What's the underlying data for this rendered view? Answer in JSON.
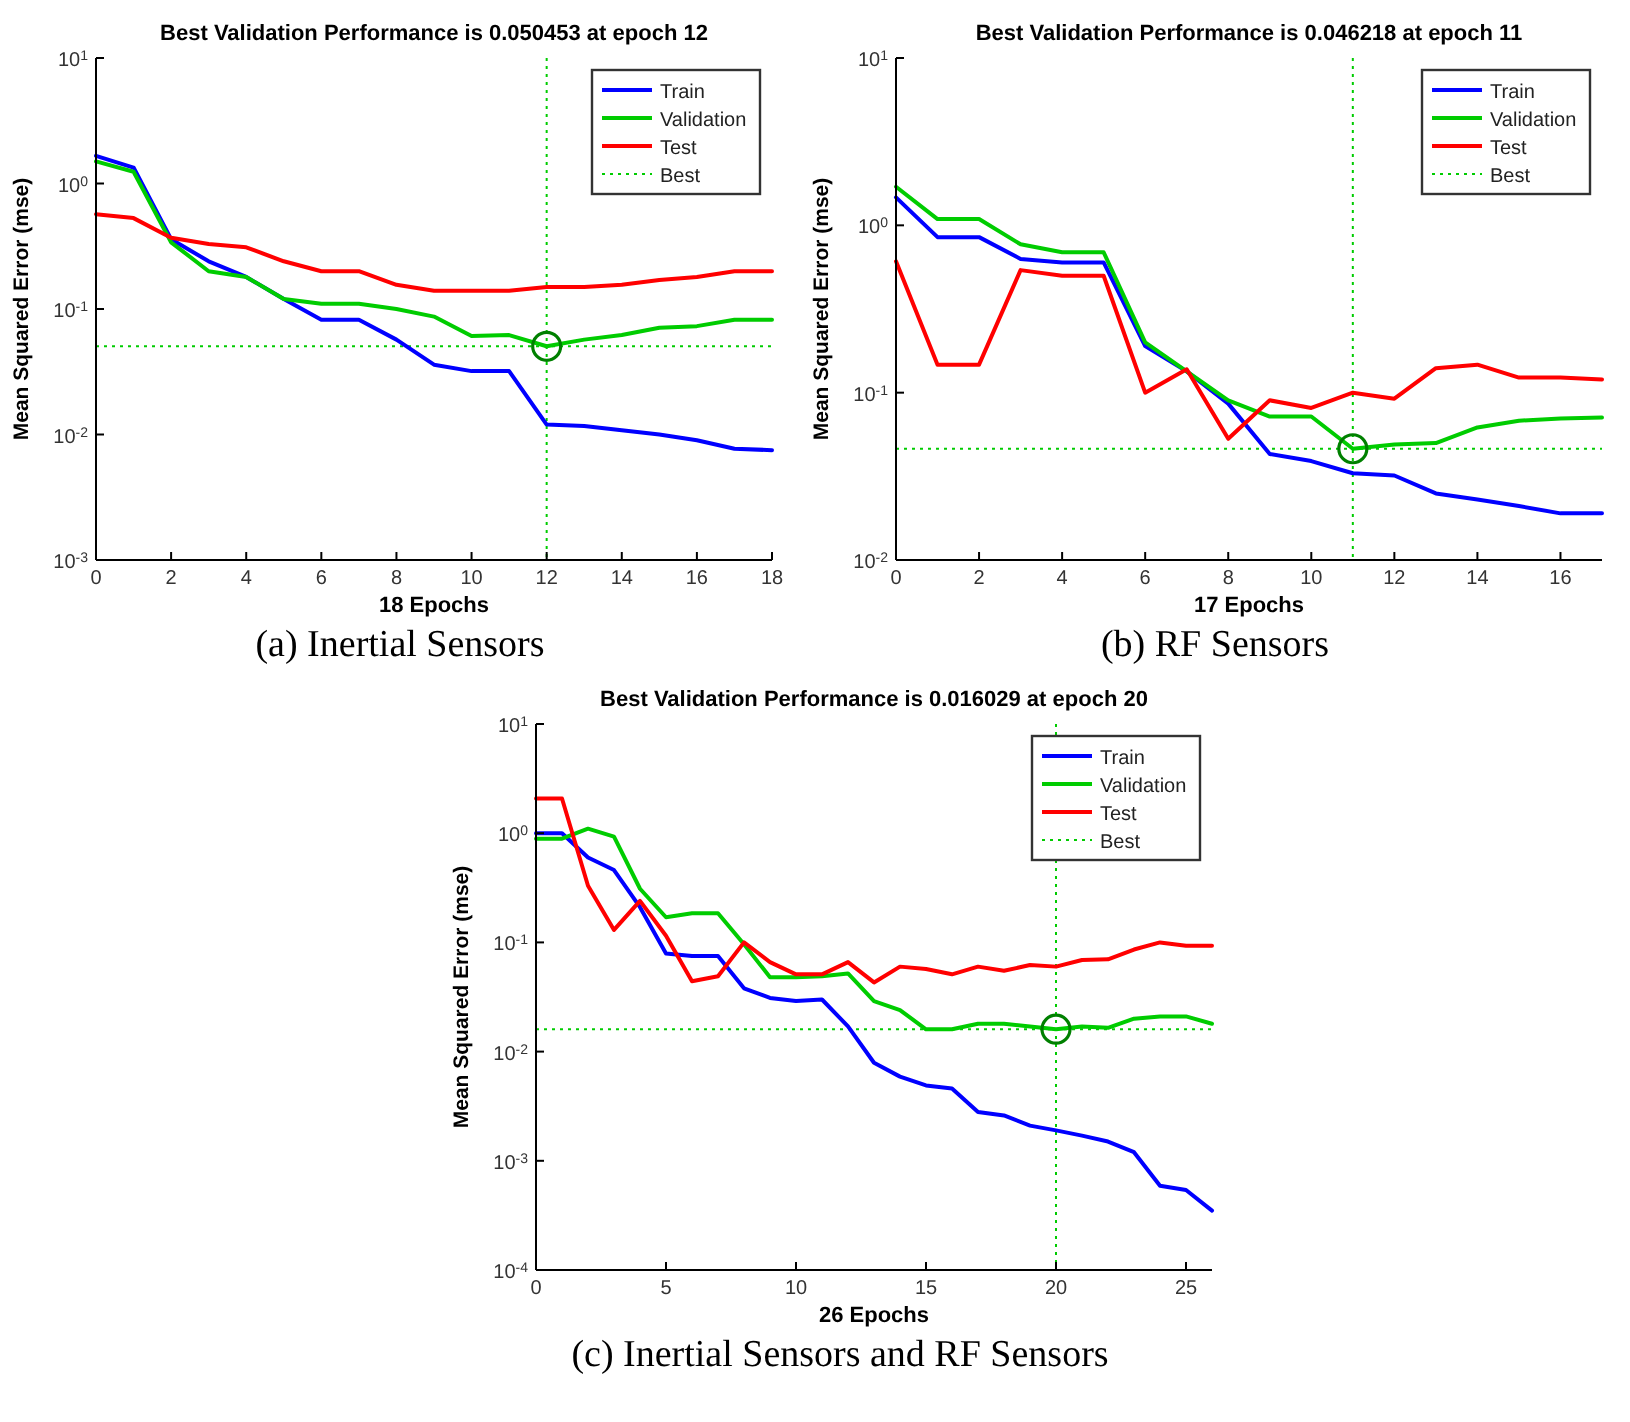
{
  "chart_data": [
    {
      "type": "line",
      "title": "Best Validation Performance is 0.050453 at epoch 12",
      "xlabel": "18 Epochs",
      "ylabel": "Mean Squared Error  (mse)",
      "log": "y",
      "legend": "top right",
      "grid": false,
      "annotations": [
        "(a)   Inertial Sensors"
      ],
      "x": [
        0,
        1,
        2,
        3,
        4,
        5,
        6,
        7,
        8,
        9,
        10,
        11,
        12,
        13,
        14,
        15,
        16,
        17,
        18
      ],
      "xlim": [
        0,
        18
      ],
      "xticks": [
        0,
        2,
        4,
        6,
        8,
        10,
        12,
        14,
        16,
        18
      ],
      "ylim": [
        0.001,
        10
      ],
      "yticks": [
        {
          "value": 0.001,
          "label": "10$^{-3}$"
        },
        {
          "value": 0.01,
          "label": "10$^{-2}$"
        },
        {
          "value": 0.1,
          "label": "10$^{-1}$"
        },
        {
          "value": 1,
          "label": "10$^{0}$"
        },
        {
          "value": 10,
          "label": "10$^{1}$"
        }
      ],
      "series": [
        {
          "name": "Train",
          "color": "#0000ff",
          "values": [
            1.66,
            1.34,
            0.36,
            0.24,
            0.18,
            0.12,
            0.082,
            0.082,
            0.057,
            0.036,
            0.032,
            0.032,
            0.012,
            0.0117,
            0.0108,
            0.01,
            0.009,
            0.0077,
            0.0075
          ]
        },
        {
          "name": "Validation",
          "color": "#00cc00",
          "values": [
            1.5,
            1.24,
            0.34,
            0.2,
            0.18,
            0.12,
            0.11,
            0.11,
            0.1,
            0.087,
            0.061,
            0.062,
            0.050453,
            0.057,
            0.062,
            0.071,
            0.073,
            0.082,
            0.082
          ]
        },
        {
          "name": "Test",
          "color": "#ff0000",
          "values": [
            0.57,
            0.53,
            0.37,
            0.33,
            0.31,
            0.24,
            0.2,
            0.2,
            0.156,
            0.14,
            0.14,
            0.14,
            0.15,
            0.15,
            0.156,
            0.17,
            0.18,
            0.2,
            0.2
          ]
        },
        {
          "type": "scatter",
          "marker": "circle",
          "color": "#008000",
          "x": [
            12
          ],
          "values": [
            0.050453
          ]
        }
      ],
      "ref_lines": [
        {
          "axis": "y",
          "value": 0.050453,
          "label": "Best",
          "color": "#00cc00",
          "line_style": "dotted"
        },
        {
          "axis": "x",
          "value": 12,
          "color": "#00cc00",
          "line_style": "dotted"
        }
      ]
    },
    {
      "type": "line",
      "title": "Best Validation Performance is 0.046218 at epoch 11",
      "xlabel": "17 Epochs",
      "ylabel": "Mean Squared Error  (mse)",
      "log": "y",
      "legend": "top right",
      "grid": false,
      "annotations": [
        "(b)  RF Sensors"
      ],
      "x": [
        0,
        1,
        2,
        3,
        4,
        5,
        6,
        7,
        8,
        9,
        10,
        11,
        12,
        13,
        14,
        15,
        16,
        17
      ],
      "xlim": [
        0,
        17
      ],
      "xticks": [
        0,
        2,
        4,
        6,
        8,
        10,
        12,
        14,
        16
      ],
      "ylim": [
        0.01,
        10
      ],
      "yticks": [
        {
          "value": 0.01,
          "label": "10$^{-2}$"
        },
        {
          "value": 0.1,
          "label": "10$^{-1}$"
        },
        {
          "value": 1,
          "label": "10$^{0}$"
        },
        {
          "value": 10,
          "label": "10$^{1}$"
        }
      ],
      "series": [
        {
          "name": "Train",
          "color": "#0000ff",
          "values": [
            1.47,
            0.85,
            0.85,
            0.63,
            0.6,
            0.6,
            0.19,
            0.134,
            0.086,
            0.043,
            0.039,
            0.033,
            0.032,
            0.025,
            0.023,
            0.021,
            0.019,
            0.019
          ]
        },
        {
          "name": "Validation",
          "color": "#00cc00",
          "values": [
            1.7,
            1.09,
            1.09,
            0.77,
            0.69,
            0.69,
            0.2,
            0.134,
            0.09,
            0.072,
            0.072,
            0.046218,
            0.049,
            0.05,
            0.062,
            0.068,
            0.07,
            0.071
          ]
        },
        {
          "name": "Test",
          "color": "#ff0000",
          "values": [
            0.61,
            0.147,
            0.147,
            0.54,
            0.5,
            0.5,
            0.1,
            0.138,
            0.053,
            0.09,
            0.081,
            0.1,
            0.092,
            0.14,
            0.147,
            0.123,
            0.123,
            0.12
          ]
        },
        {
          "type": "scatter",
          "marker": "circle",
          "color": "#008000",
          "x": [
            11
          ],
          "values": [
            0.046218
          ]
        }
      ],
      "ref_lines": [
        {
          "axis": "y",
          "value": 0.046218,
          "label": "Best",
          "color": "#00cc00",
          "line_style": "dotted"
        },
        {
          "axis": "x",
          "value": 11,
          "color": "#00cc00",
          "line_style": "dotted"
        }
      ]
    },
    {
      "type": "line",
      "title": "Best Validation Performance is 0.016029 at epoch 20",
      "xlabel": "26 Epochs",
      "ylabel": "Mean Squared Error  (mse)",
      "log": "y",
      "legend": "top right",
      "grid": false,
      "annotations": [
        "(c) Inertial Sensors and RF Sensors"
      ],
      "x": [
        0,
        1,
        2,
        3,
        4,
        5,
        6,
        7,
        8,
        9,
        10,
        11,
        12,
        13,
        14,
        15,
        16,
        17,
        18,
        19,
        20,
        21,
        22,
        23,
        24,
        25,
        26
      ],
      "xlim": [
        0,
        26
      ],
      "xticks": [
        0,
        5,
        10,
        15,
        20,
        25
      ],
      "ylim": [
        0.0001,
        10
      ],
      "yticks": [
        {
          "value": 0.0001,
          "label": "10$^{-4}$"
        },
        {
          "value": 0.001,
          "label": "10$^{-3}$"
        },
        {
          "value": 0.01,
          "label": "10$^{-2}$"
        },
        {
          "value": 0.1,
          "label": "10$^{-1}$"
        },
        {
          "value": 1,
          "label": "10$^{0}$"
        },
        {
          "value": 10,
          "label": "10$^{1}$"
        }
      ],
      "series": [
        {
          "name": "Train",
          "color": "#0000ff",
          "values": [
            1.0,
            1.0,
            0.6,
            0.46,
            0.21,
            0.079,
            0.075,
            0.075,
            0.038,
            0.031,
            0.029,
            0.03,
            0.017,
            0.0079,
            0.0059,
            0.0049,
            0.0046,
            0.0028,
            0.0026,
            0.0021,
            0.0019,
            0.0017,
            0.0015,
            0.0012,
            0.00059,
            0.00054,
            0.00035
          ]
        },
        {
          "name": "Validation",
          "color": "#00cc00",
          "values": [
            0.89,
            0.89,
            1.1,
            0.93,
            0.31,
            0.17,
            0.185,
            0.185,
            0.096,
            0.048,
            0.048,
            0.049,
            0.052,
            0.029,
            0.024,
            0.016,
            0.016,
            0.018,
            0.018,
            0.017,
            0.016029,
            0.017,
            0.0165,
            0.02,
            0.021,
            0.021,
            0.018
          ]
        },
        {
          "name": "Test",
          "color": "#ff0000",
          "values": [
            2.08,
            2.08,
            0.33,
            0.13,
            0.24,
            0.115,
            0.044,
            0.049,
            0.1,
            0.066,
            0.051,
            0.051,
            0.066,
            0.043,
            0.06,
            0.057,
            0.051,
            0.06,
            0.055,
            0.062,
            0.06,
            0.069,
            0.07,
            0.086,
            0.1,
            0.093,
            0.093
          ]
        },
        {
          "type": "scatter",
          "marker": "circle",
          "color": "#008000",
          "x": [
            20
          ],
          "values": [
            0.016029
          ]
        }
      ],
      "ref_lines": [
        {
          "axis": "y",
          "value": 0.016029,
          "label": "Best",
          "color": "#00cc00",
          "line_style": "dotted"
        },
        {
          "axis": "x",
          "value": 20,
          "color": "#00cc00",
          "line_style": "dotted"
        }
      ]
    }
  ]
}
